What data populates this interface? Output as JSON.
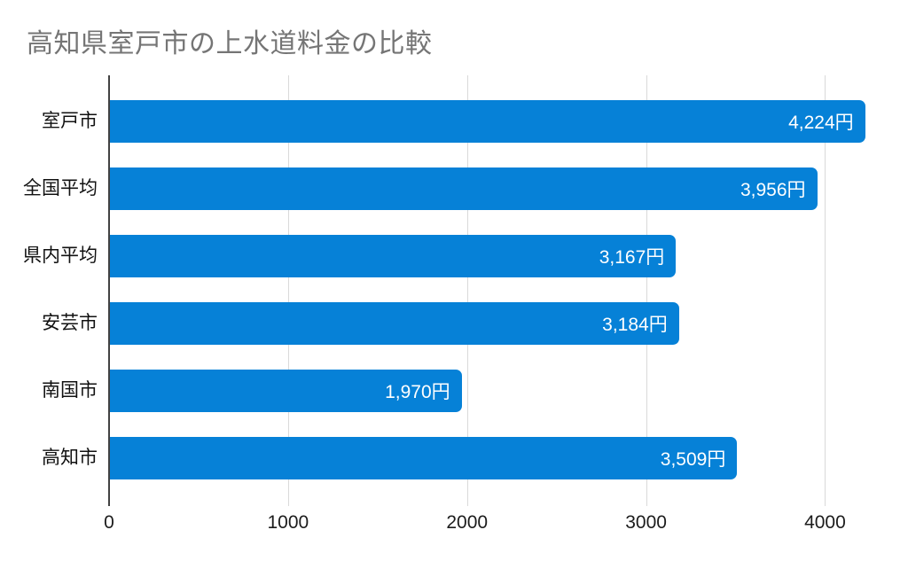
{
  "title": "高知県室戸市の上水道料金の比較",
  "colors": {
    "bar": "#0681d7",
    "title_text": "#757575",
    "gridline": "#d9d9d9",
    "axis_line": "#424242",
    "bar_value_text": "#ffffff",
    "category_text": "#111111",
    "tick_text": "#1c1c1c",
    "background": "#ffffff"
  },
  "chart_data": {
    "type": "bar",
    "orientation": "horizontal",
    "title": "高知県室戸市の上水道料金の比較",
    "categories": [
      "室戸市",
      "全国平均",
      "県内平均",
      "安芸市",
      "南国市",
      "高知市"
    ],
    "values": [
      4224,
      3956,
      3167,
      3184,
      1970,
      3509
    ],
    "value_labels": [
      "4,224円",
      "3,956円",
      "3,167円",
      "3,184円",
      "1,970円",
      "3,509円"
    ],
    "unit": "円",
    "xlabel": "",
    "ylabel": "",
    "xlim": [
      0,
      4300
    ],
    "x_ticks": [
      0,
      1000,
      2000,
      3000,
      4000
    ],
    "x_tick_labels": [
      "0",
      "1000",
      "2000",
      "3000",
      "4000"
    ],
    "grid": true,
    "legend": false
  }
}
